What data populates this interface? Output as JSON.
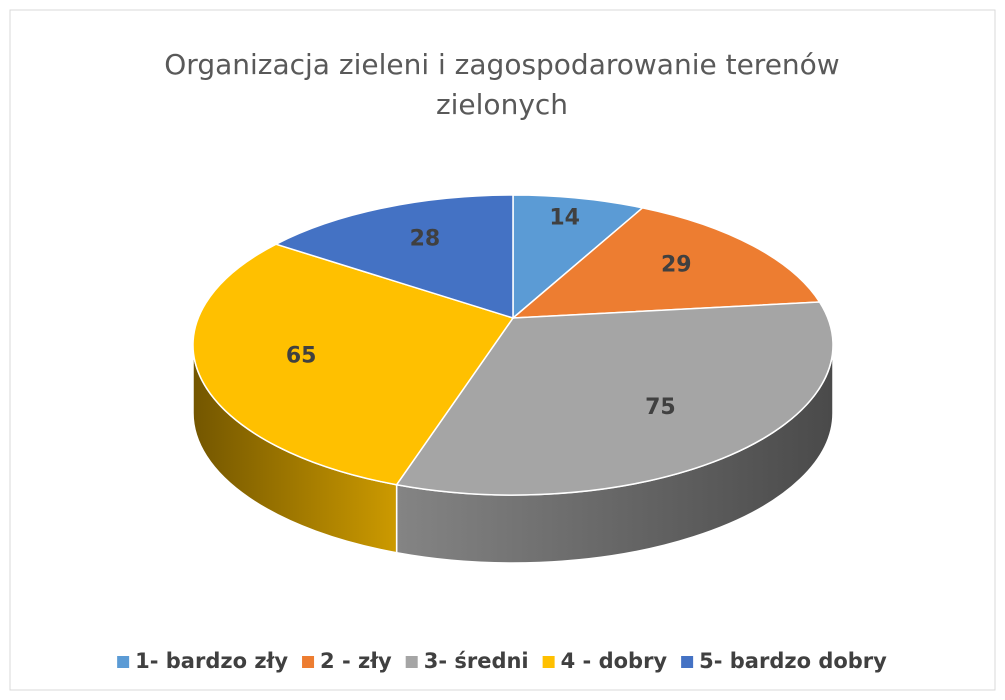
{
  "chart_data": {
    "type": "pie",
    "title": "Organizacja zieleni i zagospodarowanie terenów zielonych",
    "categories": [
      "1- bardzo zły",
      "2 - zły",
      "3- średni",
      "4 - dobry",
      "5- bardzo dobry"
    ],
    "values": [
      14,
      29,
      75,
      65,
      28
    ],
    "colors": [
      "#5b9bd5",
      "#ed7d31",
      "#a5a5a5",
      "#ffc000",
      "#4472c4"
    ],
    "legend": "bottom"
  }
}
